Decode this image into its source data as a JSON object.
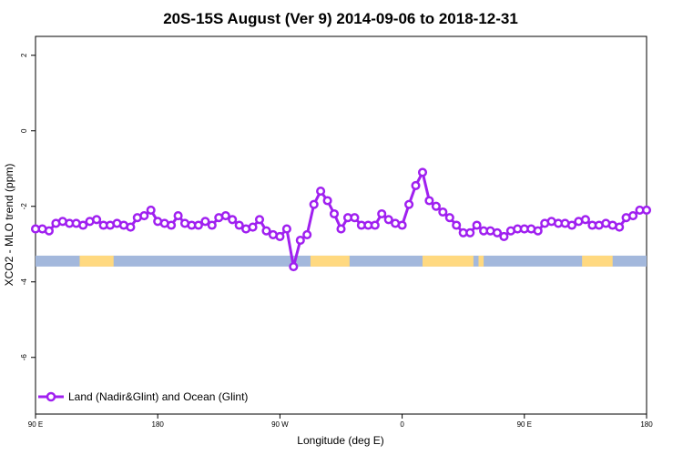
{
  "chart_data": {
    "type": "line",
    "title": "20S-15S August (Ver 9)   2014-09-06 to 2018-12-31",
    "xlabel": "Longitude (deg E)",
    "ylabel": "XCO2 - MLO trend (ppm)",
    "xlim": [
      90,
      450
    ],
    "ylim": [
      -7.5,
      2.5
    ],
    "xticks": [
      {
        "value": 90,
        "label": "90 E"
      },
      {
        "value": 162,
        "label": "180"
      },
      {
        "value": 234,
        "label": "90 W"
      },
      {
        "value": 306,
        "label": "0"
      },
      {
        "value": 378,
        "label": "90 E"
      },
      {
        "value": 450,
        "label": "180"
      }
    ],
    "yticks": [
      {
        "value": 2,
        "label": "2"
      },
      {
        "value": 0,
        "label": "0"
      },
      {
        "value": -2,
        "label": "-2"
      },
      {
        "value": -4,
        "label": "-4"
      },
      {
        "value": -6,
        "label": "-6"
      }
    ],
    "grid": false,
    "legend": {
      "position": "bottom-left",
      "entries": [
        {
          "name": "Land (Nadir&Glint) and Ocean (Glint)",
          "color": "#a020f0"
        }
      ]
    },
    "series": [
      {
        "name": "Land (Nadir&Glint) and Ocean (Glint)",
        "color": "#a020f0",
        "x": [
          90,
          94,
          98,
          102,
          106,
          110,
          114,
          118,
          122,
          126,
          130,
          134,
          138,
          142,
          146,
          150,
          154,
          158,
          162,
          166,
          170,
          174,
          178,
          182,
          186,
          190,
          194,
          198,
          202,
          206,
          210,
          214,
          218,
          222,
          226,
          230,
          234,
          238,
          242,
          246,
          250,
          254,
          258,
          262,
          266,
          270,
          274,
          278,
          282,
          286,
          290,
          294,
          298,
          302,
          306,
          310,
          314,
          318,
          322,
          326,
          330,
          334,
          338,
          342,
          346,
          350,
          354,
          358,
          362,
          366,
          370,
          374,
          378,
          382,
          386,
          390,
          394,
          398,
          402,
          406,
          410,
          414,
          418,
          422,
          426,
          430,
          434,
          438,
          442,
          446,
          450
        ],
        "values": [
          -2.6,
          -2.6,
          -2.65,
          -2.45,
          -2.4,
          -2.45,
          -2.45,
          -2.5,
          -2.4,
          -2.35,
          -2.5,
          -2.5,
          -2.45,
          -2.5,
          -2.55,
          -2.3,
          -2.25,
          -2.1,
          -2.4,
          -2.45,
          -2.5,
          -2.25,
          -2.45,
          -2.5,
          -2.5,
          -2.4,
          -2.5,
          -2.3,
          -2.25,
          -2.35,
          -2.5,
          -2.6,
          -2.55,
          -2.35,
          -2.65,
          -2.75,
          -2.8,
          -2.6,
          -3.6,
          -2.9,
          -2.75,
          -1.95,
          -1.6,
          -1.85,
          -2.2,
          -2.6,
          -2.3,
          -2.3,
          -2.5,
          -2.5,
          -2.5,
          -2.2,
          -2.35,
          -2.45,
          -2.5,
          -1.95,
          -1.45,
          -1.1,
          -1.85,
          -2.0,
          -2.15,
          -2.3,
          -2.5,
          -2.7,
          -2.7,
          -2.5,
          -2.65,
          -2.65,
          -2.7,
          -2.8,
          -2.65,
          -2.6,
          -2.6,
          -2.6,
          -2.65,
          -2.45,
          -2.4,
          -2.45,
          -2.45,
          -2.5,
          -2.4,
          -2.35,
          -2.5,
          -2.5,
          -2.45,
          -2.5,
          -2.55,
          -2.3,
          -2.25,
          -2.1,
          -2.1
        ]
      }
    ],
    "surface_band": {
      "y": -3.45,
      "ocean_color": "#a3b8dc",
      "land_color": "#ffd980",
      "land_ranges": [
        [
          116,
          136
        ],
        [
          252,
          275
        ],
        [
          318,
          348
        ],
        [
          351,
          354
        ],
        [
          412,
          430
        ]
      ]
    }
  }
}
